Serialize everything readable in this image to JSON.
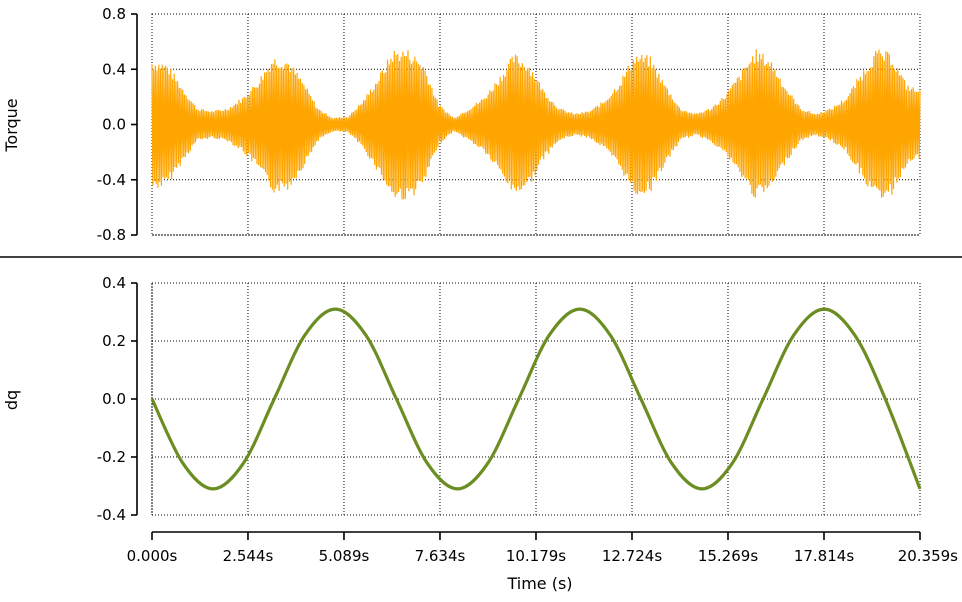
{
  "chart_data": [
    {
      "type": "line",
      "ylabel": "Torque",
      "ylim": [
        -0.8,
        0.8
      ],
      "yticks": [
        "0.8",
        "0.4",
        "0.0",
        "-0.4",
        "-0.8"
      ],
      "ytick_values": [
        0.8,
        0.4,
        0.0,
        -0.4,
        -0.8
      ],
      "xlim": [
        0,
        20.359
      ],
      "grid": true,
      "series": [
        {
          "color": "#ffa500",
          "style": "dense oscillating band",
          "x": [
            0,
            0.4,
            0.8,
            1.2,
            1.6,
            2.0,
            2.4,
            2.8,
            3.2,
            3.6,
            4.0,
            4.4,
            4.8,
            5.2,
            5.6,
            6.0,
            6.4,
            6.8,
            7.2,
            7.6,
            8.0,
            8.4,
            8.8,
            9.2,
            9.6,
            10.0,
            10.4,
            10.8,
            11.2,
            11.6,
            12.0,
            12.4,
            12.8,
            13.2,
            13.6,
            14.0,
            14.4,
            14.8,
            15.2,
            15.6,
            16.0,
            16.4,
            16.8,
            17.2,
            17.6,
            18.0,
            18.4,
            18.8,
            19.2,
            19.6,
            20.0,
            20.359
          ],
          "envelope": [
            0.48,
            0.45,
            0.28,
            0.12,
            0.1,
            0.12,
            0.2,
            0.32,
            0.5,
            0.48,
            0.32,
            0.12,
            0.05,
            0.06,
            0.18,
            0.35,
            0.55,
            0.55,
            0.45,
            0.15,
            0.05,
            0.12,
            0.2,
            0.35,
            0.52,
            0.45,
            0.25,
            0.12,
            0.08,
            0.1,
            0.18,
            0.32,
            0.52,
            0.5,
            0.3,
            0.12,
            0.08,
            0.12,
            0.22,
            0.38,
            0.55,
            0.48,
            0.28,
            0.12,
            0.08,
            0.12,
            0.2,
            0.38,
            0.55,
            0.52,
            0.3,
            0.25
          ]
        }
      ]
    },
    {
      "type": "line",
      "ylabel": "dq",
      "xlabel": "Time (s)",
      "ylim": [
        -0.4,
        0.4
      ],
      "yticks": [
        "0.4",
        "0.2",
        "0.0",
        "-0.2",
        "-0.4"
      ],
      "ytick_values": [
        0.4,
        0.2,
        0.0,
        -0.2,
        -0.4
      ],
      "xlim": [
        0,
        20.359
      ],
      "xticks": [
        "0.000s",
        "2.544s",
        "5.089s",
        "7.634s",
        "10.179s",
        "12.724s",
        "15.269s",
        "17.814s",
        "20.359s"
      ],
      "xtick_values": [
        0,
        2.544,
        5.089,
        7.634,
        10.179,
        12.724,
        15.269,
        17.814,
        20.359
      ],
      "grid": true,
      "series": [
        {
          "color": "#6b8e23",
          "x": [
            0,
            0.81,
            1.62,
            2.43,
            3.24,
            4.05,
            4.86,
            5.67,
            6.48,
            7.29,
            8.1,
            8.91,
            9.72,
            10.53,
            11.34,
            12.15,
            12.96,
            13.77,
            14.58,
            15.39,
            16.2,
            17.01,
            17.82,
            18.63,
            19.44,
            20.359
          ],
          "values": [
            0.0,
            -0.22,
            -0.31,
            -0.22,
            0.0,
            0.22,
            0.31,
            0.22,
            0.0,
            -0.22,
            -0.31,
            -0.22,
            0.0,
            0.22,
            0.31,
            0.22,
            0.0,
            -0.22,
            -0.31,
            -0.22,
            0.0,
            0.22,
            0.31,
            0.22,
            0.0,
            -0.31
          ]
        }
      ]
    }
  ],
  "colors": {
    "separator": "#000000",
    "grid": "#000000"
  }
}
